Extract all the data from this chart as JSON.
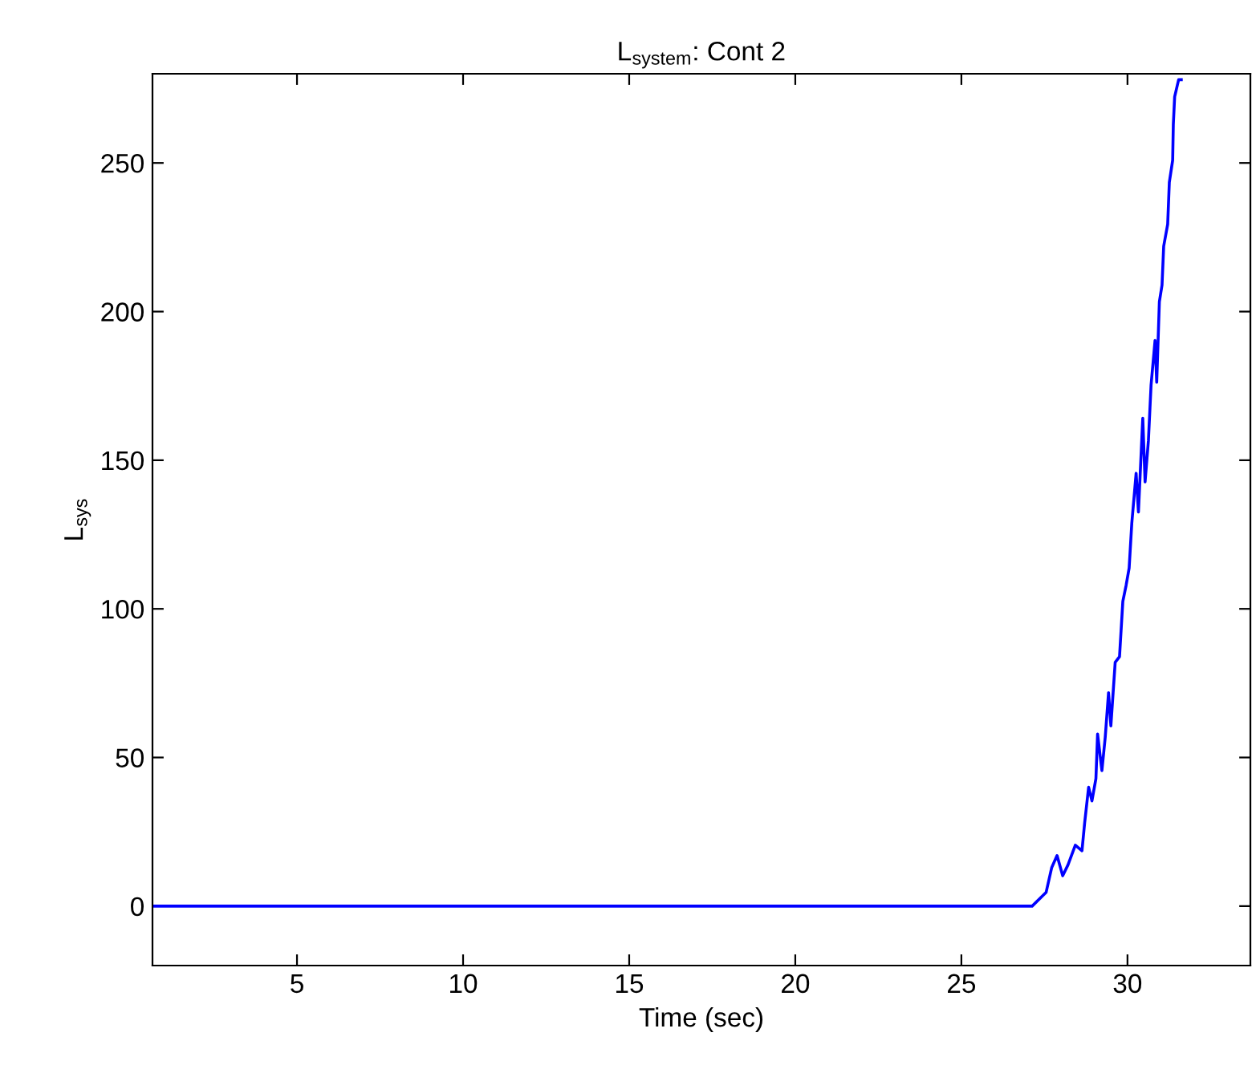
{
  "chart_data": {
    "type": "line",
    "title": "L$_{system}$: Cont 2",
    "xlabel": "Time (sec)",
    "ylabel": "L$_{sys}$",
    "xlim": [
      0.65,
      33.7
    ],
    "ylim": [
      -20,
      280
    ],
    "xticks": [
      5,
      10,
      15,
      20,
      25,
      30
    ],
    "yticks": [
      0,
      50,
      100,
      150,
      200,
      250
    ],
    "grid": false,
    "marker": "none",
    "line_style": "solid",
    "series": [
      {
        "color": "#0000ff",
        "x": [
          0.65,
          27.0,
          27.13,
          27.55,
          27.72,
          27.88,
          28.05,
          28.21,
          28.43,
          28.63,
          28.71,
          28.83,
          28.93,
          29.05,
          29.1,
          29.23,
          29.33,
          29.43,
          29.5,
          29.63,
          29.76,
          29.86,
          29.96,
          30.05,
          30.13,
          30.26,
          30.33,
          30.46,
          30.53,
          30.63,
          30.71,
          30.83,
          30.88,
          30.96,
          31.04,
          31.09,
          31.21,
          31.26,
          31.36,
          31.38,
          31.42,
          31.54,
          31.62
        ],
        "values": [
          0,
          0,
          0,
          4.6,
          13,
          17,
          10.2,
          13.9,
          20.5,
          18.6,
          27.9,
          40,
          35.4,
          42.9,
          57.9,
          45.6,
          56.8,
          71.8,
          60.6,
          82,
          83.9,
          102.5,
          108,
          113.7,
          128.8,
          145.6,
          132.6,
          164.1,
          142.7,
          156.6,
          175.3,
          190.3,
          176.2,
          203.3,
          208.9,
          222,
          229.4,
          243.5,
          250.9,
          263,
          272.3,
          278,
          278
        ]
      }
    ]
  }
}
